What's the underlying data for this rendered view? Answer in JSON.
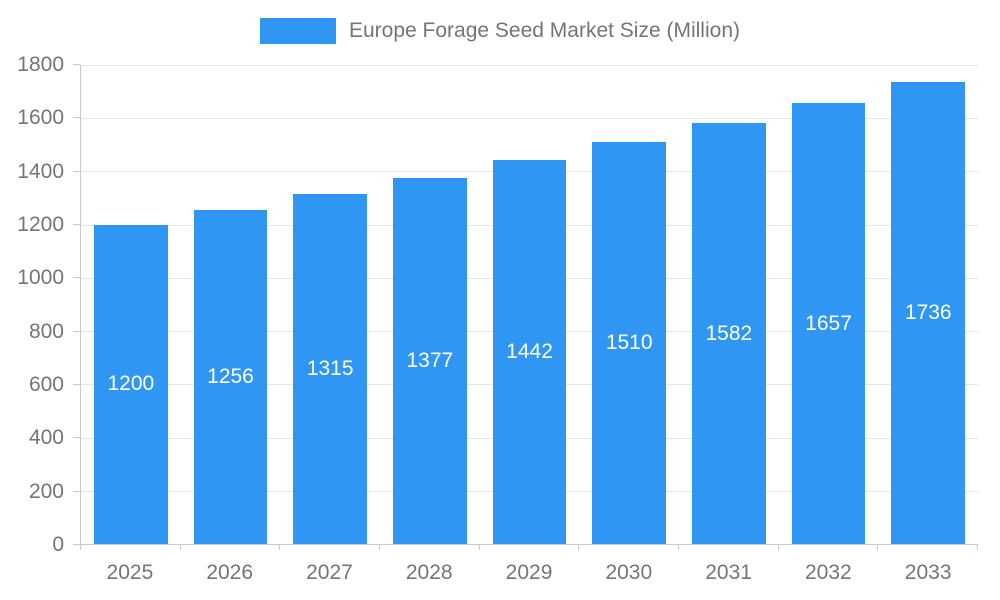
{
  "legend": {
    "label": "Europe Forage Seed Market Size (Million)"
  },
  "chart_data": {
    "type": "bar",
    "title": "Europe Forage Seed Market Size (Million)",
    "categories": [
      "2025",
      "2026",
      "2027",
      "2028",
      "2029",
      "2030",
      "2031",
      "2032",
      "2033"
    ],
    "values": [
      1200,
      1256,
      1315,
      1377,
      1442,
      1510,
      1582,
      1657,
      1736
    ],
    "xlabel": "",
    "ylabel": "",
    "ylim": [
      0,
      1800
    ],
    "ytick_step": 200,
    "grid": true,
    "legend_position": "top",
    "bar_labels": "inside-center",
    "colors": {
      "bar": "#2F96F3",
      "axis_text": "#757575",
      "grid_line": "#E6E6E6",
      "axis_line": "#C9C9C9",
      "bar_label": "#FFFFFF",
      "background": "#FFFFFF"
    }
  }
}
